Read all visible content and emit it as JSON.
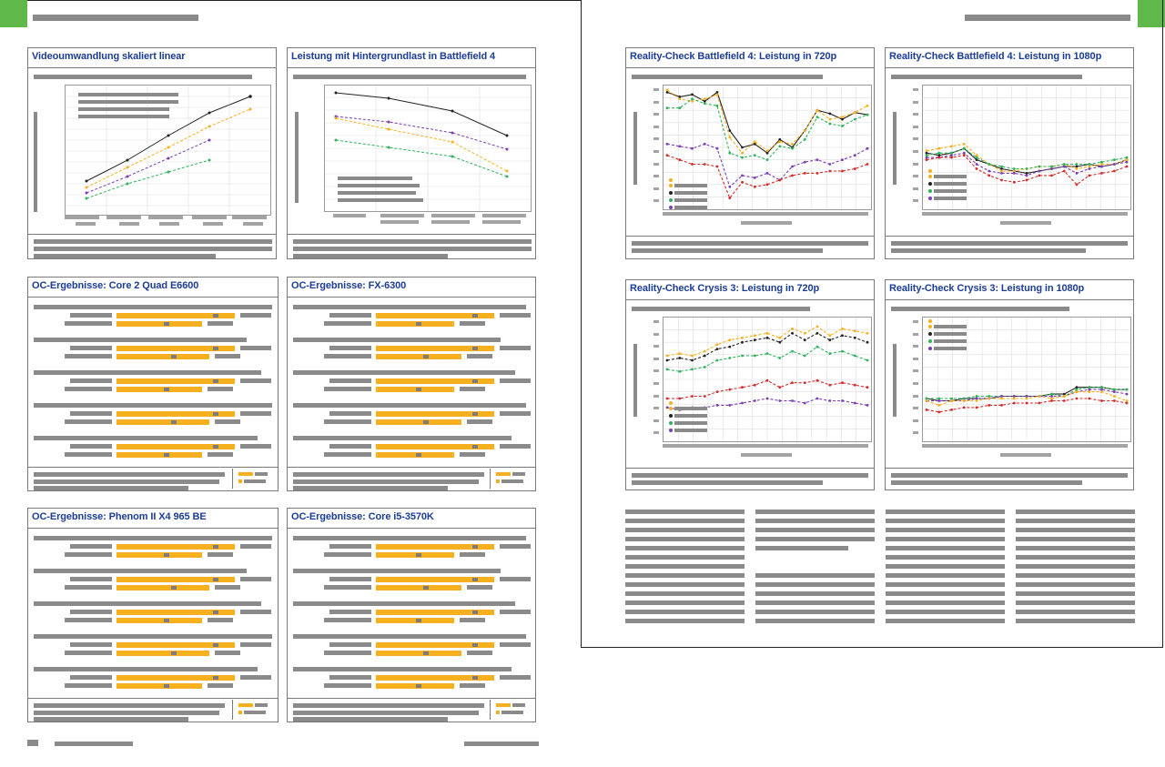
{
  "layout": {
    "spread": "two-page magazine spread"
  },
  "colors": {
    "title_blue": "#1c3d95",
    "accent_green": "#5fb94a",
    "bar_orange": "#f6b01f",
    "placeholder_gray": "#8a8a8a",
    "black_series": "#222222",
    "orange_series": "#f6b01f",
    "purple_series": "#7a3fb2",
    "green_series": "#2fb35a",
    "red_series": "#d42a2a"
  },
  "panels": {
    "video": {
      "title": "Videoumwandlung skaliert linear"
    },
    "bf4load": {
      "title": "Leistung mit Hintergrundlast in Battlefield 4"
    },
    "oc_core2": {
      "title": "OC-Ergebnisse: Core 2 Quad E6600"
    },
    "oc_fx": {
      "title": "OC-Ergebnisse: FX-6300"
    },
    "oc_phenom": {
      "title": "OC-Ergebnisse: Phenom II X4 965 BE"
    },
    "oc_i5": {
      "title": "OC-Ergebnisse: Core i5-3570K"
    },
    "bf4_720": {
      "title": "Reality-Check Battlefield 4: Leistung in 720p"
    },
    "bf4_1080": {
      "title": "Reality-Check Battlefield 4: Leistung in 1080p"
    },
    "crysis_720": {
      "title": "Reality-Check Crysis 3: Leistung in 720p"
    },
    "crysis_1080": {
      "title": "Reality-Check Crysis 3: Leistung in 1080p"
    }
  },
  "icons": {
    "page_tab_left": "green-page-tab",
    "page_tab_right": "green-page-tab"
  }
}
